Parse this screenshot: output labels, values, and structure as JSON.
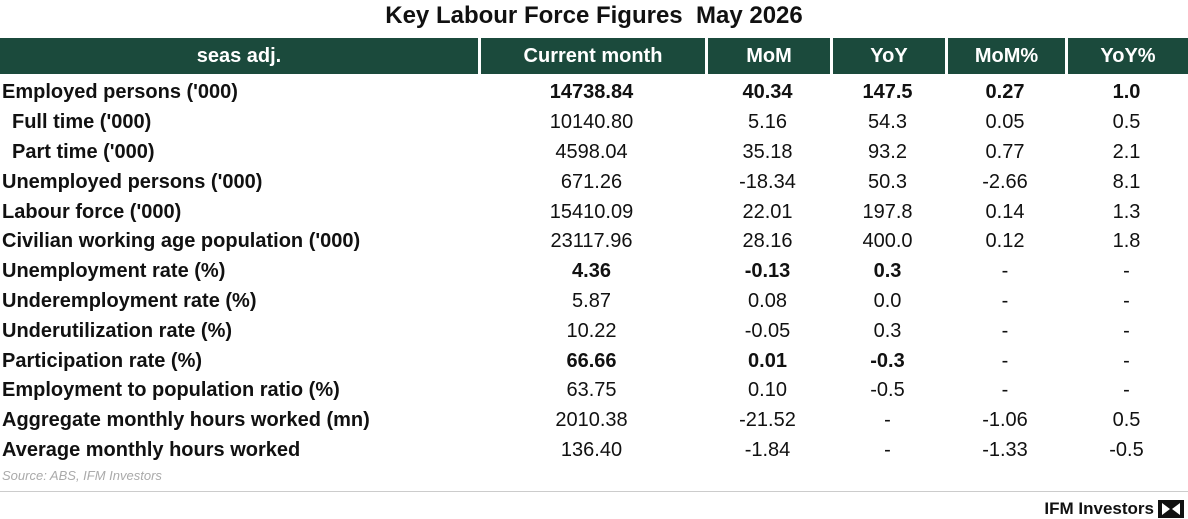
{
  "title": "Key Labour Force Figures  May 2026",
  "table": {
    "header": [
      "seas adj.",
      "Current month",
      "MoM",
      "YoY",
      "MoM%",
      "YoY%"
    ],
    "rows": [
      [
        "Employed persons ('000)",
        "14738.84",
        "40.34",
        "147.5",
        "0.27",
        "1.0"
      ],
      [
        "Full time ('000)",
        "10140.80",
        "5.16",
        "54.3",
        "0.05",
        "0.5"
      ],
      [
        "Part time ('000)",
        "4598.04",
        "35.18",
        "93.2",
        "0.77",
        "2.1"
      ],
      [
        "Unemployed persons ('000)",
        "671.26",
        "-18.34",
        "50.3",
        "-2.66",
        "8.1"
      ],
      [
        "Labour force ('000)",
        "15410.09",
        "22.01",
        "197.8",
        "0.14",
        "1.3"
      ],
      [
        "Civilian working age population ('000)",
        "23117.96",
        "28.16",
        "400.0",
        "0.12",
        "1.8"
      ],
      [
        "Unemployment rate (%)",
        "4.36",
        "-0.13",
        "0.3",
        "-",
        "-"
      ],
      [
        "Underemployment rate (%)",
        "5.87",
        "0.08",
        "0.0",
        "-",
        "-"
      ],
      [
        "Underutilization rate (%)",
        "10.22",
        "-0.05",
        "0.3",
        "-",
        "-"
      ],
      [
        "Participation rate (%)",
        "66.66",
        "0.01",
        "-0.3",
        "-",
        "-"
      ],
      [
        "Employment to population ratio (%)",
        "63.75",
        "0.10",
        "-0.5",
        "-",
        "-"
      ],
      [
        "Aggregate monthly hours worked (mn)",
        "2010.38",
        "-21.52",
        "-",
        "-1.06",
        "0.5"
      ],
      [
        "Average monthly hours worked",
        "136.40",
        "-1.84",
        "-",
        "-1.33",
        "-0.5"
      ]
    ]
  },
  "source": "Source: ABS, IFM Investors",
  "footer": "IFM Investors"
}
